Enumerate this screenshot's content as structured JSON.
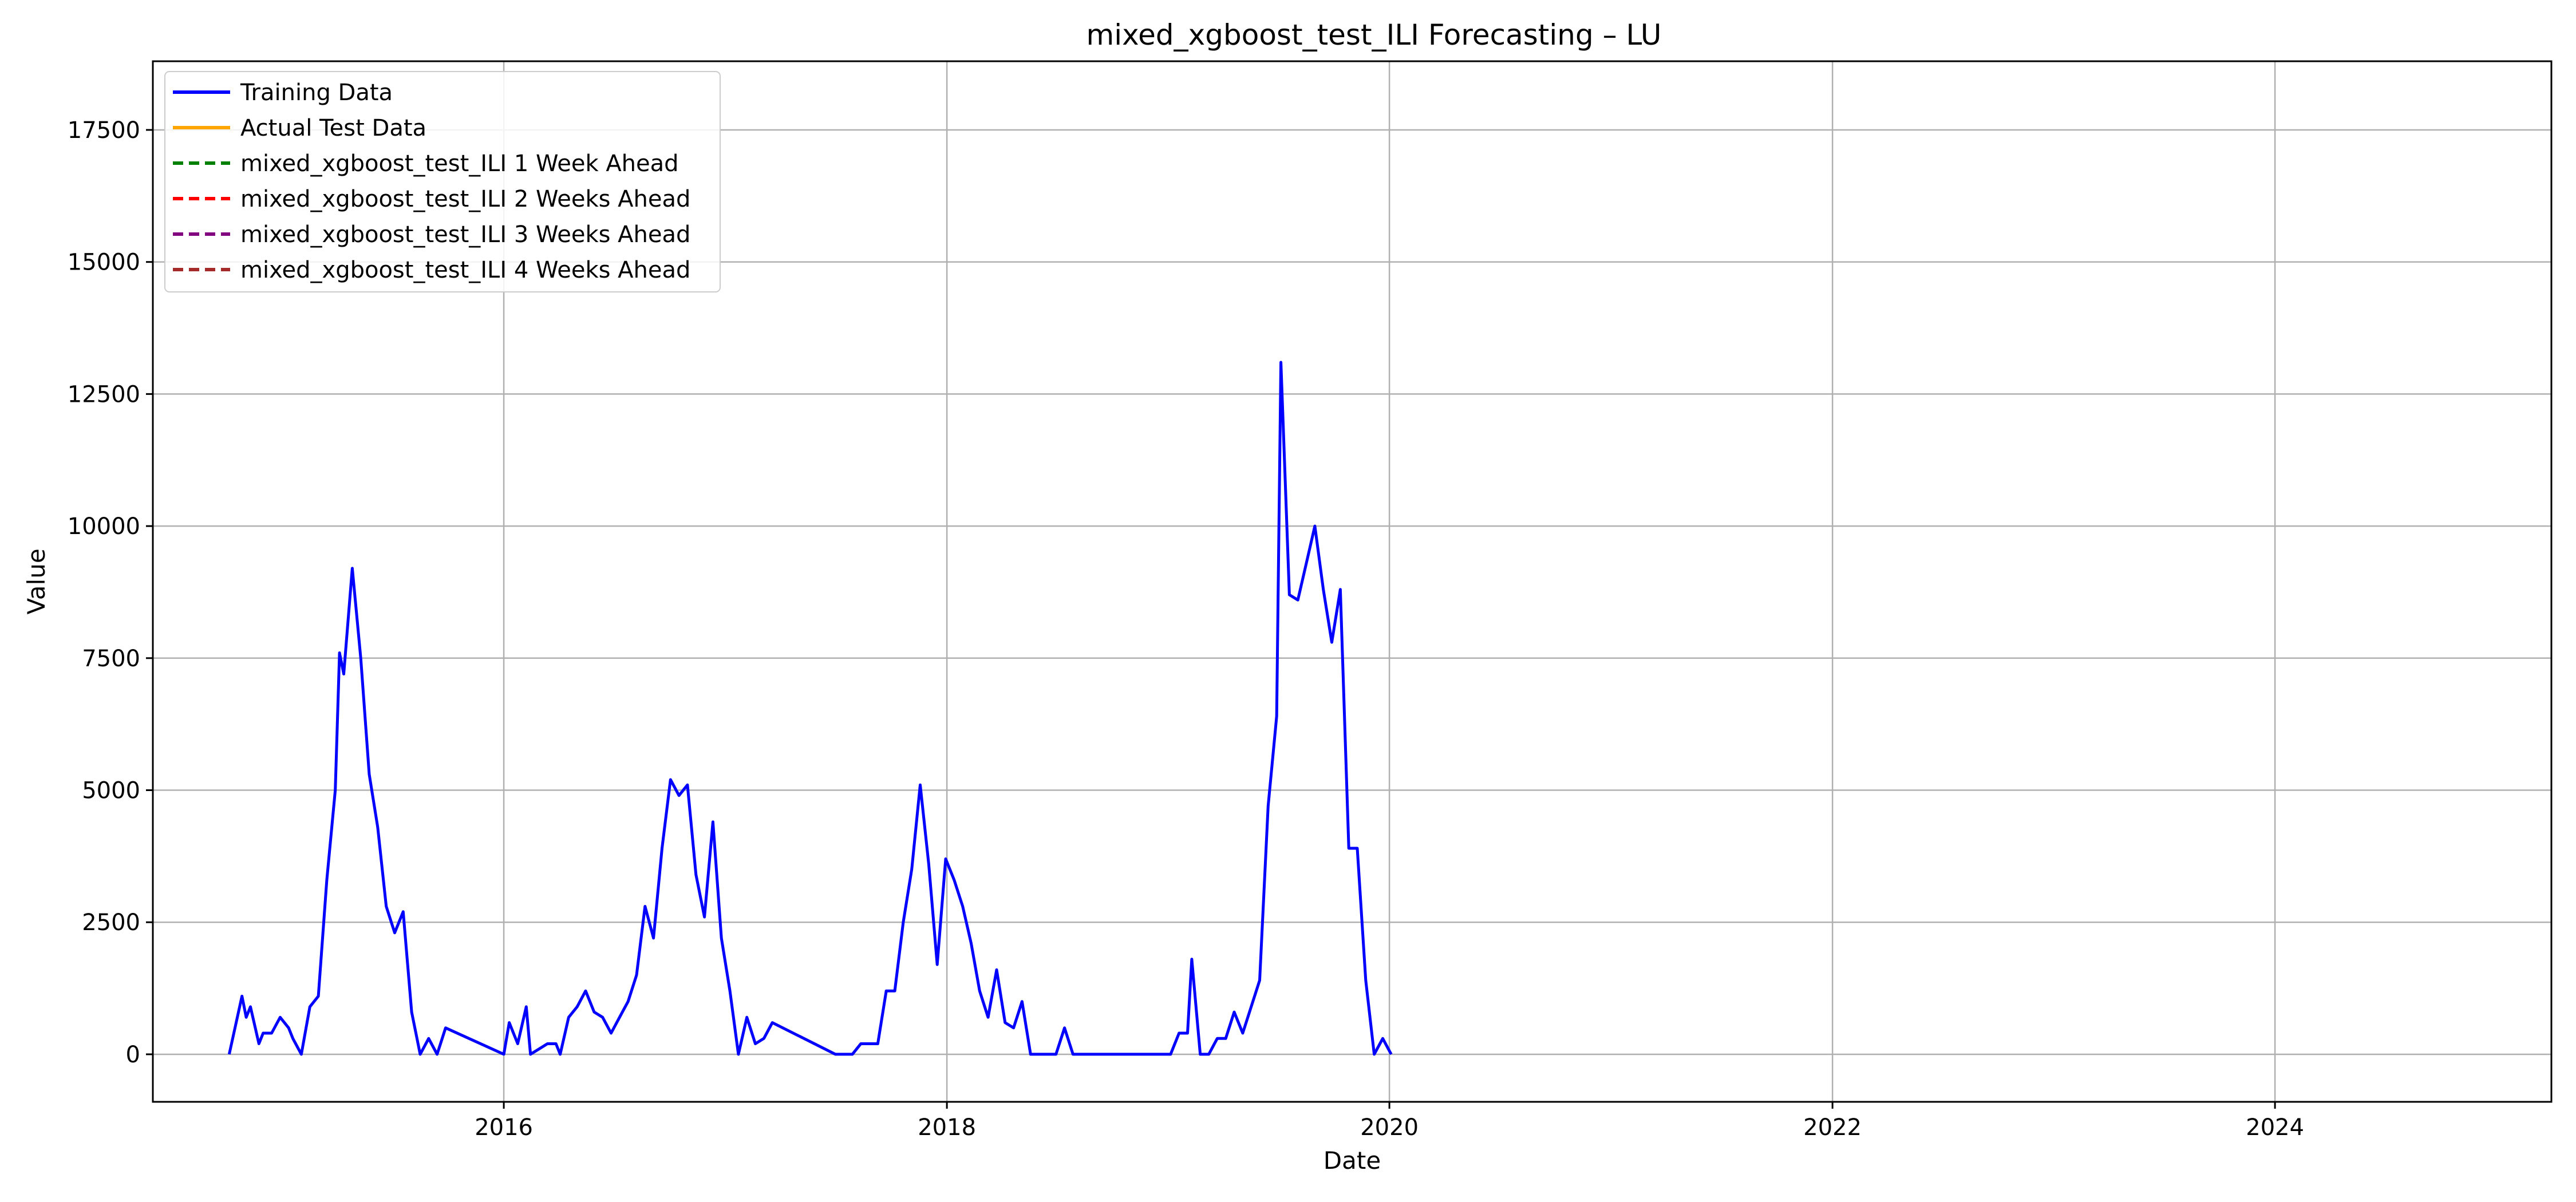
{
  "chart_data": {
    "type": "line",
    "title": "mixed_xgboost_test_ILI Forecasting – LU",
    "xlabel": "Date",
    "ylabel": "Value",
    "xlim": [
      "2014-06-01",
      "2025-04-01"
    ],
    "ylim": [
      -900,
      18800
    ],
    "x_ticks": [
      "2016-01-01",
      "2018-01-01",
      "2020-01-01",
      "2022-01-01",
      "2024-01-01"
    ],
    "x_tick_labels": [
      "2016",
      "2018",
      "2020",
      "2022",
      "2024"
    ],
    "y_ticks": [
      0,
      2500,
      5000,
      7500,
      10000,
      12500,
      15000,
      17500
    ],
    "grid": true,
    "legend_position": "top-left",
    "series": [
      {
        "name": "Training Data",
        "color": "#0000ff",
        "style": "solid",
        "points": [
          [
            "2014-10-05",
            0
          ],
          [
            "2014-10-26",
            1100
          ],
          [
            "2014-11-02",
            700
          ],
          [
            "2014-11-09",
            900
          ],
          [
            "2014-11-23",
            200
          ],
          [
            "2014-11-30",
            400
          ],
          [
            "2014-12-14",
            400
          ],
          [
            "2014-12-28",
            700
          ],
          [
            "2015-01-11",
            500
          ],
          [
            "2015-01-18",
            300
          ],
          [
            "2015-02-01",
            0
          ],
          [
            "2015-02-15",
            900
          ],
          [
            "2015-03-01",
            1100
          ],
          [
            "2015-03-15",
            3300
          ],
          [
            "2015-03-29",
            5000
          ],
          [
            "2015-04-05",
            7600
          ],
          [
            "2015-04-12",
            7200
          ],
          [
            "2015-04-26",
            9200
          ],
          [
            "2015-05-10",
            7500
          ],
          [
            "2015-05-24",
            5300
          ],
          [
            "2015-06-07",
            4300
          ],
          [
            "2015-06-21",
            2800
          ],
          [
            "2015-07-05",
            2300
          ],
          [
            "2015-07-19",
            2700
          ],
          [
            "2015-08-02",
            800
          ],
          [
            "2015-08-16",
            0
          ],
          [
            "2015-08-30",
            300
          ],
          [
            "2015-09-13",
            0
          ],
          [
            "2015-09-27",
            500
          ],
          [
            "2016-01-01",
            0
          ],
          [
            "2016-01-10",
            600
          ],
          [
            "2016-01-24",
            200
          ],
          [
            "2016-02-07",
            900
          ],
          [
            "2016-02-14",
            0
          ],
          [
            "2016-02-28",
            100
          ],
          [
            "2016-03-13",
            200
          ],
          [
            "2016-03-27",
            200
          ],
          [
            "2016-04-03",
            0
          ],
          [
            "2016-04-17",
            700
          ],
          [
            "2016-05-01",
            900
          ],
          [
            "2016-05-15",
            1200
          ],
          [
            "2016-05-29",
            800
          ],
          [
            "2016-06-12",
            700
          ],
          [
            "2016-06-26",
            400
          ],
          [
            "2016-07-10",
            700
          ],
          [
            "2016-07-24",
            1000
          ],
          [
            "2016-08-07",
            1500
          ],
          [
            "2016-08-21",
            2800
          ],
          [
            "2016-09-04",
            2200
          ],
          [
            "2016-09-18",
            3900
          ],
          [
            "2016-10-02",
            5200
          ],
          [
            "2016-10-16",
            4900
          ],
          [
            "2016-10-30",
            5100
          ],
          [
            "2016-11-13",
            3400
          ],
          [
            "2016-11-27",
            2600
          ],
          [
            "2016-12-11",
            4400
          ],
          [
            "2016-12-25",
            2200
          ],
          [
            "2017-01-08",
            1200
          ],
          [
            "2017-01-22",
            0
          ],
          [
            "2017-02-05",
            700
          ],
          [
            "2017-02-19",
            200
          ],
          [
            "2017-03-05",
            300
          ],
          [
            "2017-03-19",
            600
          ],
          [
            "2017-07-01",
            0
          ],
          [
            "2017-07-15",
            0
          ],
          [
            "2017-07-29",
            0
          ],
          [
            "2017-08-12",
            200
          ],
          [
            "2017-08-26",
            200
          ],
          [
            "2017-09-09",
            200
          ],
          [
            "2017-09-23",
            1200
          ],
          [
            "2017-10-07",
            1200
          ],
          [
            "2017-10-21",
            2500
          ],
          [
            "2017-11-04",
            3500
          ],
          [
            "2017-11-18",
            5100
          ],
          [
            "2017-12-02",
            3600
          ],
          [
            "2017-12-16",
            1700
          ],
          [
            "2017-12-30",
            3700
          ],
          [
            "2018-01-13",
            3300
          ],
          [
            "2018-01-27",
            2800
          ],
          [
            "2018-02-10",
            2100
          ],
          [
            "2018-02-24",
            1200
          ],
          [
            "2018-03-10",
            700
          ],
          [
            "2018-03-24",
            1600
          ],
          [
            "2018-04-07",
            600
          ],
          [
            "2018-04-21",
            500
          ],
          [
            "2018-05-05",
            1000
          ],
          [
            "2018-05-19",
            0
          ],
          [
            "2018-06-16",
            0
          ],
          [
            "2018-06-30",
            0
          ],
          [
            "2018-07-14",
            500
          ],
          [
            "2018-07-28",
            0
          ],
          [
            "2018-08-11",
            0
          ],
          [
            "2018-08-25",
            0
          ],
          [
            "2018-10-20",
            0
          ],
          [
            "2018-11-10",
            0
          ],
          [
            "2018-11-24",
            0
          ],
          [
            "2018-12-08",
            0
          ],
          [
            "2018-12-22",
            0
          ],
          [
            "2019-01-05",
            0
          ],
          [
            "2019-01-19",
            400
          ],
          [
            "2019-02-02",
            400
          ],
          [
            "2019-02-09",
            1800
          ],
          [
            "2019-02-23",
            0
          ],
          [
            "2019-03-09",
            0
          ],
          [
            "2019-03-23",
            300
          ],
          [
            "2019-04-06",
            300
          ],
          [
            "2019-04-20",
            800
          ],
          [
            "2019-05-04",
            400
          ],
          [
            "2019-05-18",
            900
          ],
          [
            "2019-06-01",
            1400
          ],
          [
            "2019-06-15",
            4700
          ],
          [
            "2019-06-29",
            6400
          ],
          [
            "2019-07-06",
            13100
          ],
          [
            "2019-07-20",
            8700
          ],
          [
            "2019-08-03",
            8600
          ],
          [
            "2019-08-17",
            9300
          ],
          [
            "2019-08-31",
            10000
          ],
          [
            "2019-09-14",
            8800
          ],
          [
            "2019-09-28",
            7800
          ],
          [
            "2019-10-12",
            8800
          ],
          [
            "2019-10-26",
            3900
          ],
          [
            "2019-11-09",
            3900
          ],
          [
            "2019-11-23",
            1400
          ],
          [
            "2019-12-07",
            0
          ],
          [
            "2019-12-21",
            300
          ],
          [
            "2020-01-04",
            0
          ]
        ]
      },
      {
        "name": "Actual Test Data",
        "color": "#ffa500",
        "style": "solid",
        "points": []
      },
      {
        "name": "mixed_xgboost_test_ILI 1 Week Ahead",
        "color": "#008000",
        "style": "dashed",
        "points": []
      },
      {
        "name": "mixed_xgboost_test_ILI 2 Weeks Ahead",
        "color": "#ff0000",
        "style": "dashed",
        "points": []
      },
      {
        "name": "mixed_xgboost_test_ILI 3 Weeks Ahead",
        "color": "#800080",
        "style": "dashed",
        "points": []
      },
      {
        "name": "mixed_xgboost_test_ILI 4 Weeks Ahead",
        "color": "#a52a2a",
        "style": "dashed",
        "points": []
      }
    ]
  }
}
